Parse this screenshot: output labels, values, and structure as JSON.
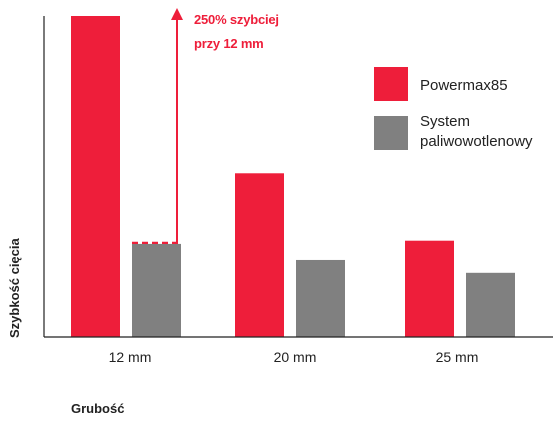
{
  "chart_data": {
    "type": "bar",
    "categories": [
      "12 mm",
      "20 mm",
      "25 mm"
    ],
    "series": [
      {
        "name": "Powermax85",
        "values": [
          100,
          51,
          30
        ],
        "color": "#ee1e3a"
      },
      {
        "name": "System paliwowotlenowy",
        "values": [
          29,
          24,
          20
        ],
        "color": "#808080"
      }
    ],
    "xlabel": "Grubość",
    "ylabel": "Szybkość cięcia",
    "ylim": [
      0,
      100
    ],
    "y_ticks_shown": false,
    "grid": false,
    "legend_position": "top-right",
    "legend_labels": {
      "powermax": "Powermax85",
      "oxyfuel_line1": "System",
      "oxyfuel_line2": "paliwowotlenowy"
    },
    "annotation": {
      "line1": "250% szybciej",
      "line2": "przy 12 mm",
      "category": "12 mm",
      "from_series": "System paliwowotlenowy",
      "to_series": "Powermax85",
      "color": "#ee1e3a"
    }
  }
}
